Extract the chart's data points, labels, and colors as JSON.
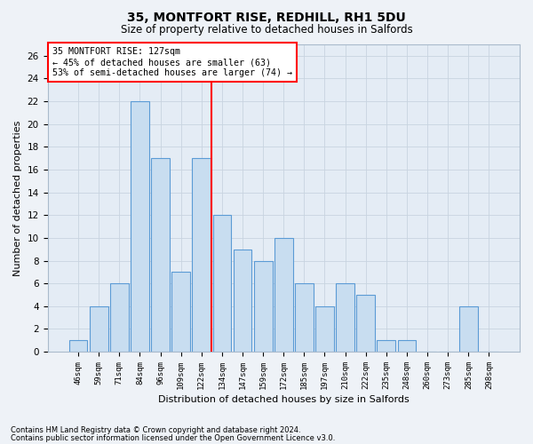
{
  "title1": "35, MONTFORT RISE, REDHILL, RH1 5DU",
  "title2": "Size of property relative to detached houses in Salfords",
  "xlabel": "Distribution of detached houses by size in Salfords",
  "ylabel": "Number of detached properties",
  "categories": [
    "46sqm",
    "59sqm",
    "71sqm",
    "84sqm",
    "96sqm",
    "109sqm",
    "122sqm",
    "134sqm",
    "147sqm",
    "159sqm",
    "172sqm",
    "185sqm",
    "197sqm",
    "210sqm",
    "222sqm",
    "235sqm",
    "248sqm",
    "260sqm",
    "273sqm",
    "285sqm",
    "298sqm"
  ],
  "values": [
    1,
    4,
    6,
    22,
    17,
    7,
    17,
    12,
    9,
    8,
    10,
    6,
    4,
    6,
    5,
    1,
    1,
    0,
    0,
    4,
    0
  ],
  "bar_color": "#c8ddf0",
  "bar_edge_color": "#5b9bd5",
  "red_line_index": 6.5,
  "annotation_text_line1": "35 MONTFORT RISE: 127sqm",
  "annotation_text_line2": "← 45% of detached houses are smaller (63)",
  "annotation_text_line3": "53% of semi-detached houses are larger (74) →",
  "grid_color": "#c8d4e0",
  "ylim": [
    0,
    27
  ],
  "yticks": [
    0,
    2,
    4,
    6,
    8,
    10,
    12,
    14,
    16,
    18,
    20,
    22,
    24,
    26
  ],
  "footnote1": "Contains HM Land Registry data © Crown copyright and database right 2024.",
  "footnote2": "Contains public sector information licensed under the Open Government Licence v3.0.",
  "bg_color": "#eef2f7",
  "plot_bg_color": "#e4ecf5"
}
